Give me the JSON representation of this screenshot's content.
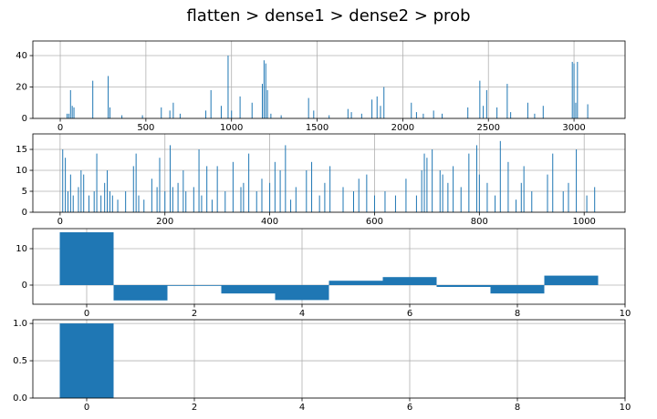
{
  "title": "flatten > dense1 > dense2 > prob",
  "chart_data": [
    {
      "type": "bar",
      "color": "#1f77b4",
      "grid": true,
      "x": [
        40,
        50,
        60,
        70,
        80,
        190,
        280,
        290,
        360,
        480,
        590,
        640,
        660,
        700,
        850,
        880,
        940,
        980,
        1000,
        1050,
        1120,
        1180,
        1190,
        1200,
        1210,
        1230,
        1290,
        1450,
        1480,
        1570,
        1680,
        1700,
        1760,
        1820,
        1850,
        1870,
        1890,
        2050,
        2080,
        2120,
        2180,
        2230,
        2380,
        2450,
        2470,
        2490,
        2550,
        2610,
        2630,
        2730,
        2770,
        2820,
        2990,
        3000,
        3010,
        3020,
        3080
      ],
      "values": [
        3,
        3,
        18,
        8,
        7,
        24,
        27,
        7,
        2,
        2,
        7,
        5,
        10,
        3,
        5,
        18,
        8,
        40,
        5,
        14,
        10,
        22,
        37,
        35,
        18,
        3,
        2,
        13,
        5,
        2,
        6,
        4,
        3,
        12,
        14,
        8,
        20,
        10,
        4,
        3,
        5,
        3,
        7,
        24,
        8,
        18,
        7,
        22,
        4,
        10,
        3,
        8,
        36,
        35,
        10,
        36,
        9
      ],
      "xlim": [
        -160,
        3298
      ],
      "ylim": [
        0,
        49.3
      ],
      "xticks": [
        0,
        500,
        1000,
        1500,
        2000,
        2500,
        3000
      ],
      "yticks": [
        0,
        20,
        40
      ]
    },
    {
      "type": "bar",
      "color": "#1f77b4",
      "grid": true,
      "x": [
        5,
        10,
        15,
        20,
        25,
        35,
        40,
        45,
        55,
        65,
        70,
        78,
        85,
        90,
        95,
        100,
        110,
        125,
        140,
        145,
        150,
        160,
        175,
        185,
        190,
        200,
        210,
        215,
        225,
        235,
        240,
        255,
        265,
        270,
        280,
        290,
        300,
        315,
        330,
        345,
        350,
        360,
        375,
        385,
        400,
        410,
        420,
        430,
        440,
        450,
        470,
        480,
        495,
        505,
        515,
        540,
        560,
        570,
        585,
        600,
        620,
        640,
        660,
        680,
        690,
        695,
        700,
        710,
        725,
        730,
        740,
        750,
        765,
        780,
        795,
        800,
        815,
        830,
        840,
        855,
        870,
        880,
        885,
        900,
        930,
        940,
        960,
        970,
        985,
        1005,
        1020
      ],
      "values": [
        15,
        13,
        5,
        9,
        4,
        6,
        10,
        9,
        4,
        5,
        14,
        4,
        7,
        10,
        5,
        4,
        3,
        5,
        11,
        14,
        4,
        3,
        8,
        6,
        13,
        5,
        16,
        6,
        7,
        10,
        5,
        6,
        15,
        4,
        11,
        3,
        11,
        5,
        12,
        6,
        7,
        14,
        5,
        8,
        7,
        12,
        10,
        16,
        3,
        6,
        10,
        12,
        4,
        7,
        11,
        6,
        5,
        8,
        9,
        4,
        5,
        4,
        8,
        4,
        10,
        14,
        13,
        15,
        10,
        9,
        7,
        11,
        6,
        14,
        16,
        9,
        7,
        4,
        17,
        12,
        3,
        7,
        11,
        5,
        9,
        14,
        5,
        7,
        15,
        4,
        6
      ],
      "xlim": [
        -52,
        1078
      ],
      "ylim": [
        0,
        18.7
      ],
      "xticks": [
        0,
        200,
        400,
        600,
        800,
        1000
      ],
      "yticks": [
        0,
        5,
        10,
        15
      ]
    },
    {
      "type": "bar",
      "color": "#1f77b4",
      "grid": true,
      "x": [
        0,
        1,
        2,
        3,
        4,
        5,
        6,
        7,
        8,
        9
      ],
      "values": [
        14.5,
        -4.2,
        -0.2,
        -2.3,
        -4.1,
        1.2,
        2.2,
        -0.5,
        -2.3,
        2.6
      ],
      "xlim": [
        -1,
        10
      ],
      "ylim": [
        -5.25,
        15.5
      ],
      "xticks": [
        0,
        2,
        4,
        6,
        8,
        10
      ],
      "yticks": [
        0,
        10
      ]
    },
    {
      "type": "bar",
      "color": "#1f77b4",
      "grid": true,
      "x": [
        0,
        1,
        2,
        3,
        4,
        5,
        6,
        7,
        8,
        9
      ],
      "values": [
        1.0,
        0,
        0,
        0,
        0,
        0,
        0,
        0,
        0,
        0
      ],
      "xlim": [
        -1,
        10
      ],
      "ylim": [
        0,
        1.05
      ],
      "xticks": [
        0,
        2,
        4,
        6,
        8,
        10
      ],
      "yticks": [
        {
          "value": 0,
          "label": "0.0"
        },
        {
          "value": 0.5,
          "label": "0.5"
        },
        {
          "value": 1,
          "label": "1.0"
        }
      ]
    }
  ]
}
